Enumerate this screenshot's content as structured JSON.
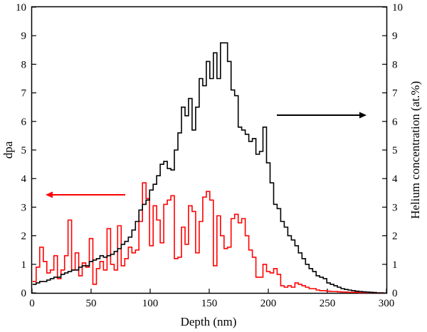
{
  "chart_data": {
    "type": "line",
    "title": "",
    "xlabel": "Depth (nm)",
    "ylabel_left": "dpa",
    "ylabel_right": "Helium concentration (at.%)",
    "xlim": [
      0,
      300
    ],
    "ylim_left": [
      0,
      10
    ],
    "ylim_right": [
      0,
      10
    ],
    "x_ticks": [
      0,
      50,
      100,
      150,
      200,
      250,
      300
    ],
    "y_ticks": [
      0,
      1,
      2,
      3,
      4,
      5,
      6,
      7,
      8,
      9,
      10
    ],
    "grid": false,
    "colors": {
      "dpa": "#ff0000",
      "helium": "#000000"
    },
    "series": [
      {
        "axis": "left",
        "step": true,
        "x": [
          2,
          5,
          8,
          11,
          14,
          17,
          20,
          23,
          26,
          29,
          32,
          35,
          38,
          41,
          44,
          47,
          50,
          53,
          56,
          59,
          62,
          65,
          68,
          71,
          74,
          77,
          80,
          83,
          86,
          89,
          92,
          95,
          98,
          101,
          104,
          107,
          110,
          113,
          116,
          119,
          122,
          125,
          128,
          131,
          134,
          137,
          140,
          143,
          146,
          149,
          152,
          155,
          158,
          161,
          164,
          167,
          170,
          173,
          176,
          179,
          182,
          185,
          188,
          191,
          194,
          197,
          200,
          203,
          206,
          209,
          212,
          215,
          218,
          221,
          224,
          227,
          230,
          233,
          236,
          239,
          242,
          245,
          248,
          251,
          254,
          257,
          260,
          263,
          266,
          269,
          272,
          275,
          278,
          281,
          284,
          287,
          290,
          293,
          296
        ],
        "y": [
          0.4,
          0.9,
          1.6,
          1.1,
          0.7,
          0.8,
          1.3,
          0.5,
          0.8,
          1.3,
          2.55,
          0.8,
          1.4,
          0.6,
          1.05,
          0.9,
          1.9,
          0.3,
          0.85,
          1.1,
          0.8,
          2.25,
          1.0,
          0.8,
          2.35,
          0.95,
          1.2,
          1.6,
          1.4,
          1.5,
          2.5,
          3.85,
          3.3,
          1.65,
          3.05,
          2.55,
          1.75,
          3.1,
          3.25,
          3.4,
          1.2,
          1.25,
          2.3,
          1.7,
          3.05,
          2.85,
          1.4,
          2.5,
          3.35,
          3.55,
          3.25,
          0.95,
          2.7,
          2.0,
          1.55,
          1.6,
          2.6,
          2.75,
          2.45,
          2.6,
          2.0,
          1.5,
          1.25,
          0.55,
          0.55,
          1.0,
          0.75,
          0.7,
          0.85,
          0.65,
          0.25,
          0.2,
          0.25,
          0.2,
          0.35,
          0.3,
          0.25,
          0.2,
          0.15,
          0.15,
          0.1,
          0.08,
          0.08,
          0.06,
          0.05,
          0.05,
          0.04,
          0.03,
          0.03,
          0.02,
          0.02,
          0.02,
          0.01,
          0.01,
          0.01,
          0.01,
          0.01,
          0.0,
          0.0
        ]
      },
      {
        "axis": "right",
        "step": true,
        "x": [
          2,
          5,
          8,
          11,
          14,
          17,
          20,
          23,
          26,
          29,
          32,
          35,
          38,
          41,
          44,
          47,
          50,
          53,
          56,
          59,
          62,
          65,
          68,
          71,
          74,
          77,
          80,
          83,
          86,
          89,
          92,
          95,
          98,
          101,
          104,
          107,
          110,
          113,
          116,
          119,
          122,
          125,
          128,
          131,
          134,
          137,
          140,
          143,
          146,
          149,
          152,
          155,
          158,
          161,
          164,
          167,
          170,
          173,
          176,
          179,
          182,
          185,
          188,
          191,
          194,
          197,
          200,
          203,
          206,
          209,
          212,
          215,
          218,
          221,
          224,
          227,
          230,
          233,
          236,
          239,
          242,
          245,
          248,
          251,
          254,
          257,
          260,
          263,
          266,
          269,
          272,
          275,
          278,
          281,
          284,
          287,
          290,
          293,
          296
        ],
        "y": [
          0.3,
          0.35,
          0.4,
          0.4,
          0.45,
          0.5,
          0.55,
          0.55,
          0.65,
          0.7,
          0.75,
          0.8,
          0.8,
          0.9,
          0.95,
          0.95,
          1.1,
          1.15,
          1.2,
          1.3,
          1.25,
          1.3,
          1.35,
          1.45,
          1.55,
          1.7,
          1.8,
          1.95,
          2.2,
          2.5,
          2.9,
          3.1,
          3.25,
          3.6,
          3.8,
          4.1,
          4.5,
          4.6,
          4.35,
          4.3,
          5.0,
          5.6,
          6.5,
          6.2,
          6.8,
          5.7,
          6.5,
          7.5,
          7.25,
          8.1,
          7.5,
          8.4,
          7.5,
          8.75,
          8.75,
          8.1,
          7.1,
          6.9,
          5.8,
          5.7,
          5.55,
          5.3,
          5.4,
          4.85,
          4.95,
          5.8,
          4.55,
          3.85,
          3.1,
          2.95,
          2.5,
          2.3,
          2.0,
          1.85,
          1.65,
          1.4,
          1.2,
          1.0,
          0.85,
          0.75,
          0.6,
          0.55,
          0.5,
          0.35,
          0.3,
          0.25,
          0.2,
          0.15,
          0.12,
          0.1,
          0.08,
          0.06,
          0.05,
          0.04,
          0.03,
          0.02,
          0.01,
          0.0,
          0.0
        ]
      }
    ]
  }
}
